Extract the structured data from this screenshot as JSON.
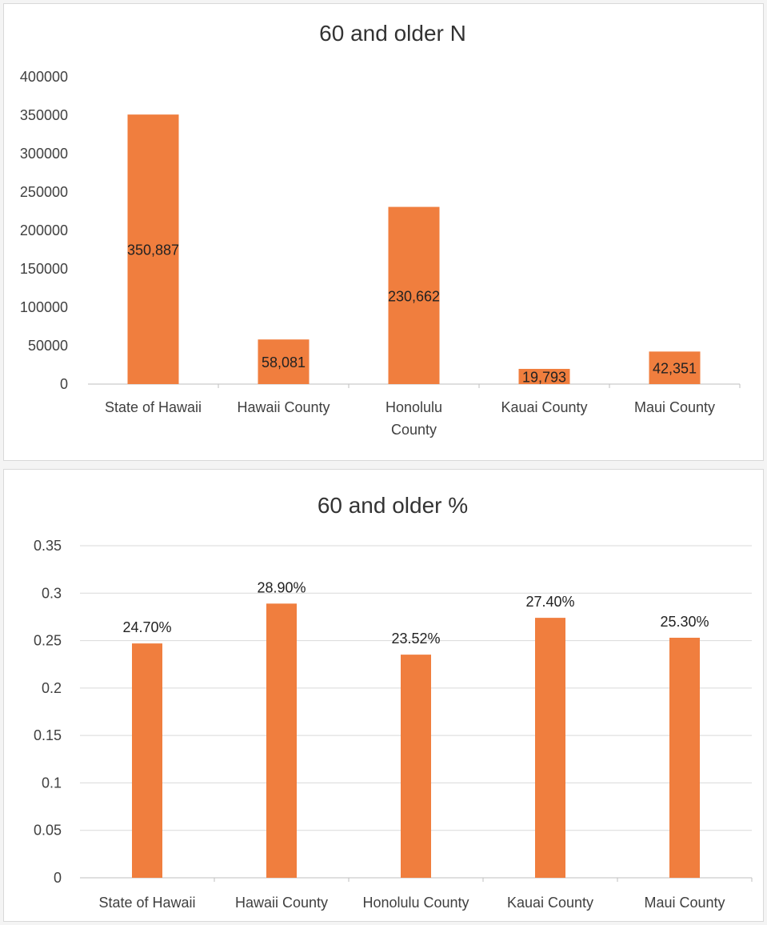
{
  "chart_data": [
    {
      "type": "bar",
      "title": "60 and older N",
      "categories": [
        "State of Hawaii",
        "Hawaii County",
        "Honolulu County",
        "Kauai County",
        "Maui County"
      ],
      "category_lines": [
        [
          "State of Hawaii"
        ],
        [
          "Hawaii County"
        ],
        [
          "Honolulu",
          "County"
        ],
        [
          "Kauai County"
        ],
        [
          "Maui County"
        ]
      ],
      "values": [
        350887,
        58081,
        230662,
        19793,
        42351
      ],
      "data_labels": [
        "350,887",
        "58,081",
        "230,662",
        "19,793",
        "42,351"
      ],
      "data_label_position": "inside-middle",
      "yticks": [
        "0",
        "50000",
        "100000",
        "150000",
        "200000",
        "250000",
        "300000",
        "350000",
        "400000"
      ],
      "ylim": [
        0,
        400000
      ],
      "grid": false,
      "color": "#F07E3E"
    },
    {
      "type": "bar",
      "title": "60 and older %",
      "categories": [
        "State of Hawaii",
        "Hawaii County",
        "Honolulu County",
        "Kauai County",
        "Maui County"
      ],
      "category_lines": [
        [
          "State of Hawaii"
        ],
        [
          "Hawaii County"
        ],
        [
          "Honolulu County"
        ],
        [
          "Kauai County"
        ],
        [
          "Maui County"
        ]
      ],
      "values": [
        0.247,
        0.289,
        0.2352,
        0.274,
        0.253
      ],
      "data_labels": [
        "24.70%",
        "28.90%",
        "23.52%",
        "27.40%",
        "25.30%"
      ],
      "data_label_position": "above",
      "yticks": [
        "0",
        "0.05",
        "0.1",
        "0.15",
        "0.2",
        "0.25",
        "0.3",
        "0.35"
      ],
      "ylim": [
        0,
        0.35
      ],
      "grid": true,
      "color": "#F07E3E"
    }
  ]
}
